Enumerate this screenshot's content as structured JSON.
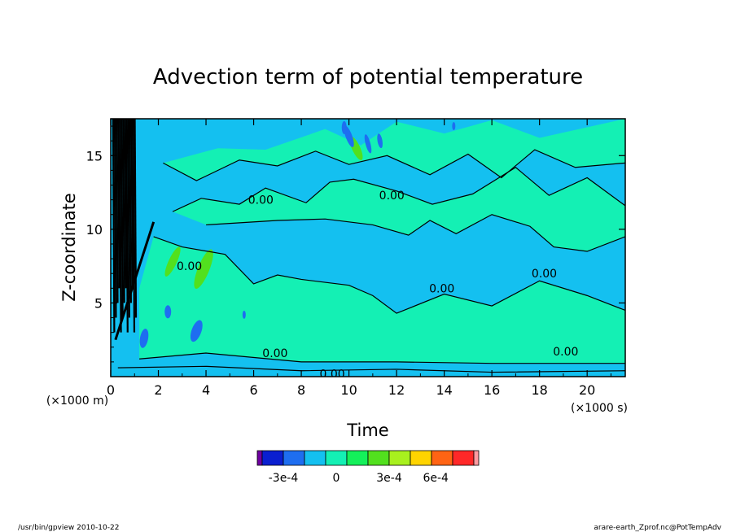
{
  "chart_data": {
    "type": "heatmap",
    "title": "Advection term of potential temperature",
    "xlabel": "Time",
    "ylabel": "Z-coordinate",
    "x_unit": "(×1000 s)",
    "y_unit": "(×1000 m)",
    "xlim": [
      0,
      21.6
    ],
    "ylim": [
      0,
      17.5
    ],
    "x_ticks": [
      0,
      2,
      4,
      6,
      8,
      10,
      12,
      14,
      16,
      18,
      20
    ],
    "y_ticks": [
      5,
      10,
      15
    ],
    "contour_labels": [
      {
        "text": "0.00",
        "x": 6.9,
        "y": 1.6
      },
      {
        "text": "0.00",
        "x": 9.3,
        "y": 0.2
      },
      {
        "text": "0.00",
        "x": 19.1,
        "y": 1.7
      },
      {
        "text": "0.00",
        "x": 3.3,
        "y": 7.5
      },
      {
        "text": "0.00",
        "x": 6.3,
        "y": 12.0
      },
      {
        "text": "0.00",
        "x": 11.8,
        "y": 12.3
      },
      {
        "text": "0.00",
        "x": 13.9,
        "y": 6.0
      },
      {
        "text": "0.00",
        "x": 18.2,
        "y": 7.0
      }
    ],
    "colorbar": {
      "ticks": [
        "-3e-4",
        "0",
        "3e-4",
        "6e-4"
      ],
      "colors": [
        "#6e00a0",
        "#0a1fd0",
        "#1e6ef0",
        "#14c0f0",
        "#14f0b4",
        "#14f05a",
        "#52e01e",
        "#a8f01e",
        "#ffd400",
        "#ff6414",
        "#ff2828",
        "#ff9aa0"
      ]
    },
    "field_colors": {
      "background": "#14c0f0",
      "positive": "#14f0b4",
      "strong_positive": "#52e01e",
      "negative": "#1e6ef0",
      "strong_negative": "#0a1fd0"
    }
  },
  "footer": {
    "left": "/usr/bin/gpview   2010-10-22",
    "right": "arare-earth_Zprof.nc@PotTempAdv"
  }
}
